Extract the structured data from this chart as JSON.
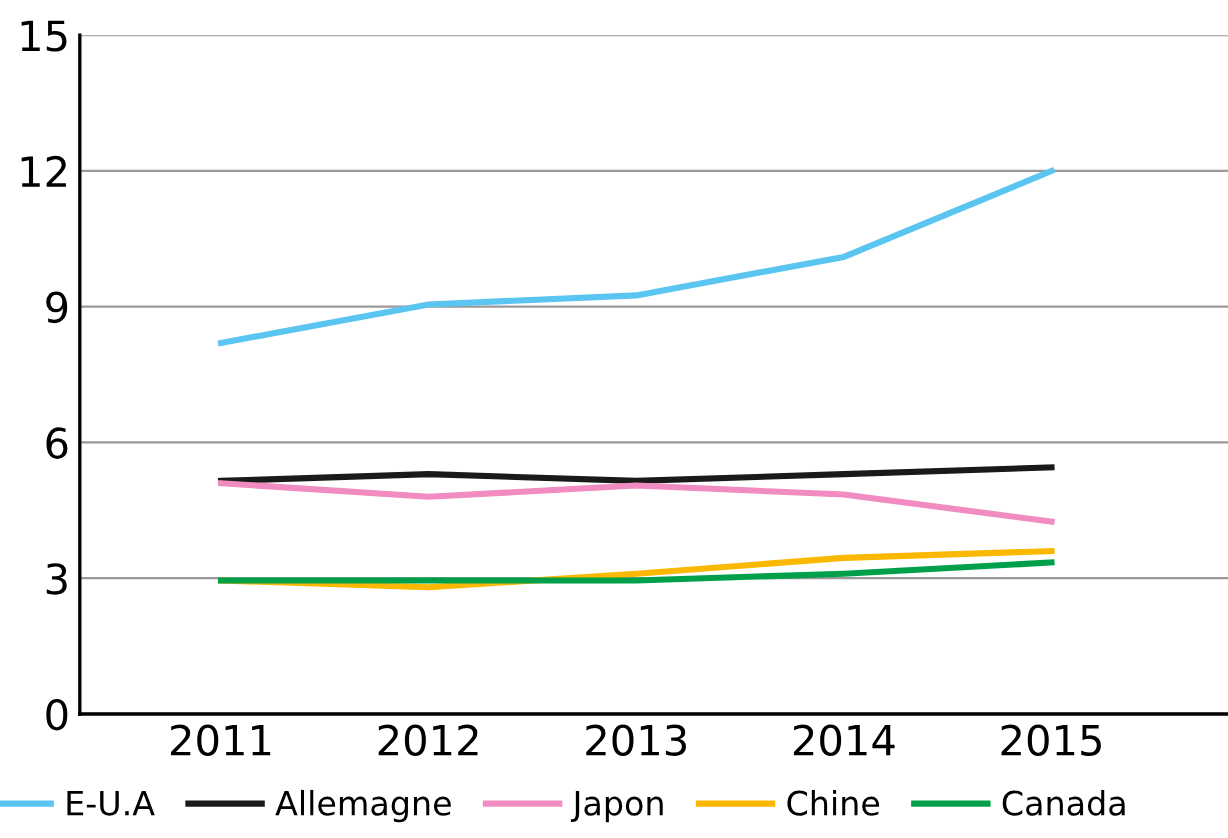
{
  "chart_data": {
    "type": "line",
    "categories": [
      "2011",
      "2012",
      "2013",
      "2014",
      "2015"
    ],
    "series": [
      {
        "name": "E-U.A",
        "color": "#5bc5f2",
        "values": [
          8.2,
          9.05,
          9.25,
          10.1,
          12.0
        ]
      },
      {
        "name": "Allemagne",
        "color": "#1a1a1a",
        "values": [
          5.15,
          5.3,
          5.15,
          5.3,
          5.45
        ]
      },
      {
        "name": "Japon",
        "color": "#f08cbf",
        "values": [
          5.1,
          4.8,
          5.05,
          4.85,
          4.25
        ]
      },
      {
        "name": "Chine",
        "color": "#fbb800",
        "values": [
          2.95,
          2.8,
          3.1,
          3.45,
          3.6
        ]
      },
      {
        "name": "Canada",
        "color": "#00a04a",
        "values": [
          2.95,
          2.95,
          2.95,
          3.1,
          3.35
        ]
      }
    ],
    "ylim": [
      0,
      15
    ],
    "yticks": [
      0,
      3,
      6,
      9,
      12,
      15
    ],
    "grid": "y",
    "legend": "bottom",
    "marker": "none",
    "line_style": "solid"
  }
}
